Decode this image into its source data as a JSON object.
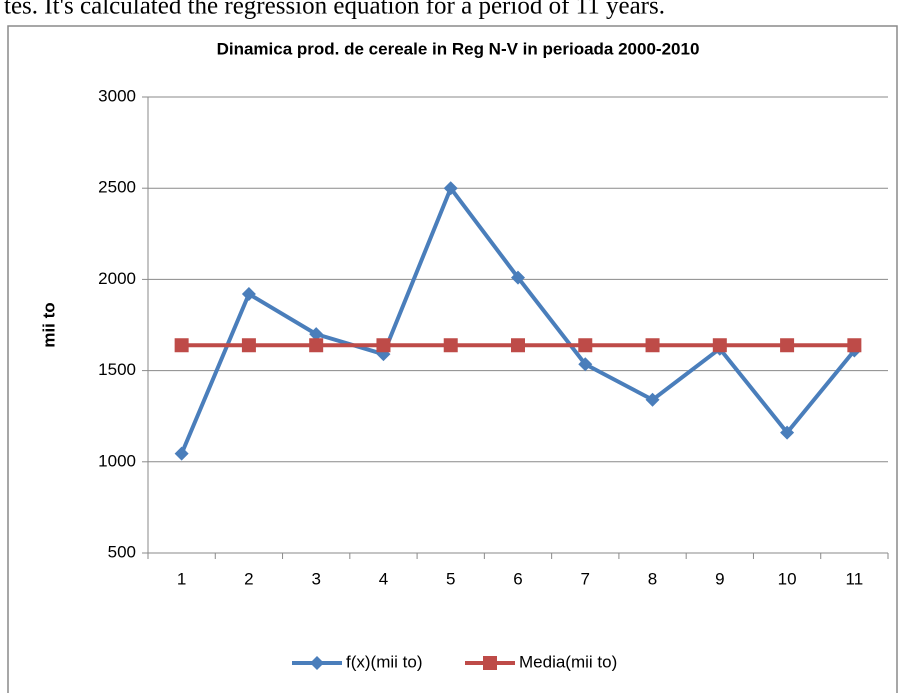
{
  "text": "tes. It's calculated the regression equation for a period of 11 years.",
  "chart_data": {
    "type": "line",
    "title": "Dinamica  prod. de cereale  in Reg N-V in perioada 2000-2010",
    "y_label": "mii to",
    "categories": [
      "1",
      "2",
      "3",
      "4",
      "5",
      "6",
      "7",
      "8",
      "9",
      "10",
      "11"
    ],
    "series": [
      {
        "name": "f(x)(mii to)",
        "color": "#4a7ebb",
        "marker": "diamond",
        "values": [
          1045,
          1920,
          1700,
          1590,
          2500,
          2010,
          1535,
          1340,
          1620,
          1160,
          1610
        ]
      },
      {
        "name": "Media(mii to)",
        "color": "#be4b48",
        "marker": "square",
        "values": [
          1639,
          1639,
          1639,
          1639,
          1639,
          1639,
          1639,
          1639,
          1639,
          1639,
          1639
        ]
      }
    ],
    "ylim": [
      500,
      3000
    ],
    "yticks": [
      500,
      1000,
      1500,
      2000,
      2500,
      3000
    ],
    "grid": true,
    "legend": "bottom"
  }
}
